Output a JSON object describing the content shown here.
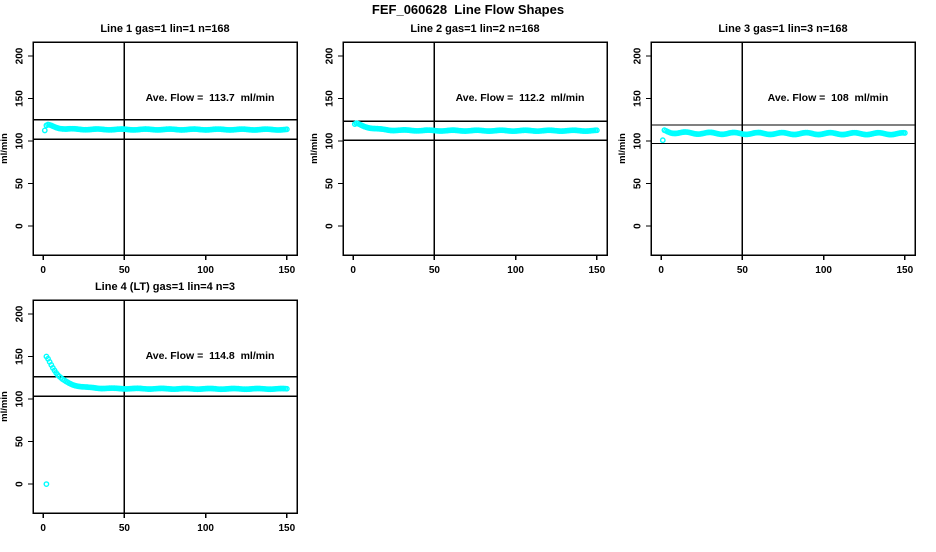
{
  "page": {
    "title": "FEF_060628  Line Flow Shapes"
  },
  "colors": {
    "points": "#00ffff",
    "axis": "#000000",
    "background": "#ffffff"
  },
  "chart_data": [
    {
      "type": "scatter",
      "title": "Line 1 gas=1 lin=1 n=168",
      "annotation": "Ave. Flow =  113.7  ml/min",
      "ave_flow_ml_min": 113.7,
      "n": 168,
      "xlabel": "",
      "ylabel": "ml/min",
      "xticks": [
        0,
        50,
        100,
        150
      ],
      "yticks": [
        0,
        50,
        100,
        150,
        200
      ],
      "xlim": [
        -6.25,
        156.25
      ],
      "ylim": [
        -34,
        216.5
      ],
      "vline_x": 50,
      "hlines": [
        125.1,
        102.3
      ],
      "x_step": 1,
      "points_sample": [
        [
          2,
          118
        ],
        [
          3,
          119
        ],
        [
          4,
          118.5
        ],
        [
          5,
          118
        ],
        [
          6,
          117.2
        ],
        [
          8,
          116
        ],
        [
          10,
          115.2
        ],
        [
          14,
          114.3
        ],
        [
          20,
          113.9
        ],
        [
          30,
          113.7
        ],
        [
          60,
          113.6
        ],
        [
          100,
          113.6
        ],
        [
          150,
          113.5
        ]
      ],
      "outliers": [
        [
          1,
          112.5
        ]
      ],
      "noise_amp": 0.5,
      "grid": false,
      "legend": "none"
    },
    {
      "type": "scatter",
      "title": "Line 2 gas=1 lin=2 n=168",
      "annotation": "Ave. Flow =  112.2  ml/min",
      "ave_flow_ml_min": 112.2,
      "n": 168,
      "xlabel": "",
      "ylabel": "ml/min",
      "xticks": [
        0,
        50,
        100,
        150
      ],
      "yticks": [
        0,
        50,
        100,
        150,
        200
      ],
      "xlim": [
        -6.25,
        156.25
      ],
      "ylim": [
        -34,
        216.5
      ],
      "vline_x": 50,
      "hlines": [
        123.4,
        101.0
      ],
      "x_step": 1,
      "points_sample": [
        [
          1,
          119.5
        ],
        [
          2,
          120.5
        ],
        [
          3,
          120
        ],
        [
          4,
          119.3
        ],
        [
          5,
          118.5
        ],
        [
          7,
          117.2
        ],
        [
          9,
          116.2
        ],
        [
          12,
          115
        ],
        [
          16,
          113.9
        ],
        [
          22,
          113
        ],
        [
          30,
          112.6
        ],
        [
          50,
          112.3
        ],
        [
          100,
          112.2
        ],
        [
          150,
          112.2
        ]
      ],
      "outliers": [],
      "noise_amp": 0.5,
      "grid": false,
      "legend": "none"
    },
    {
      "type": "scatter",
      "title": "Line 3 gas=1 lin=3 n=168",
      "annotation": "Ave. Flow =  108  ml/min",
      "ave_flow_ml_min": 108,
      "n": 168,
      "xlabel": "",
      "ylabel": "ml/min",
      "xticks": [
        0,
        50,
        100,
        150
      ],
      "yticks": [
        0,
        50,
        100,
        150,
        200
      ],
      "xlim": [
        -6.25,
        156.25
      ],
      "ylim": [
        -34,
        216.5
      ],
      "vline_x": 50,
      "hlines": [
        118.8,
        97.2
      ],
      "x_step": 1,
      "points_sample": [
        [
          2,
          112
        ],
        [
          3,
          111.5
        ],
        [
          4,
          111
        ],
        [
          6,
          110.3
        ],
        [
          10,
          109.8
        ],
        [
          20,
          109.3
        ],
        [
          40,
          109
        ],
        [
          80,
          108.8
        ],
        [
          150,
          108.6
        ]
      ],
      "outliers": [
        [
          1,
          101
        ]
      ],
      "noise_amp": 1.1,
      "grid": false,
      "legend": "none"
    },
    {
      "type": "scatter",
      "title": "Line 4 (LT) gas=1 lin=4 n=3",
      "annotation": "Ave. Flow =  114.8  ml/min",
      "ave_flow_ml_min": 114.8,
      "n": 3,
      "xlabel": "",
      "ylabel": "ml/min",
      "xticks": [
        0,
        50,
        100,
        150
      ],
      "yticks": [
        0,
        50,
        100,
        150,
        200
      ],
      "xlim": [
        -6.25,
        156.25
      ],
      "ylim": [
        -34,
        216.5
      ],
      "vline_x": 50,
      "hlines": [
        126.3,
        103.3
      ],
      "x_step": 1,
      "points_sample": [
        [
          2,
          150
        ],
        [
          3,
          147.5
        ],
        [
          4,
          144
        ],
        [
          5,
          140.5
        ],
        [
          6,
          137
        ],
        [
          7,
          134
        ],
        [
          8,
          131
        ],
        [
          9,
          128.5
        ],
        [
          10,
          126.5
        ],
        [
          12,
          123
        ],
        [
          14,
          120.5
        ],
        [
          16,
          118.5
        ],
        [
          18,
          117
        ],
        [
          20,
          116
        ],
        [
          24,
          114.5
        ],
        [
          28,
          113.5
        ],
        [
          35,
          112.8
        ],
        [
          45,
          112.4
        ],
        [
          60,
          112.2
        ],
        [
          100,
          112
        ],
        [
          150,
          112
        ]
      ],
      "outliers": [
        [
          2,
          0
        ]
      ],
      "noise_amp": 0.4,
      "grid": false,
      "legend": "none"
    }
  ]
}
